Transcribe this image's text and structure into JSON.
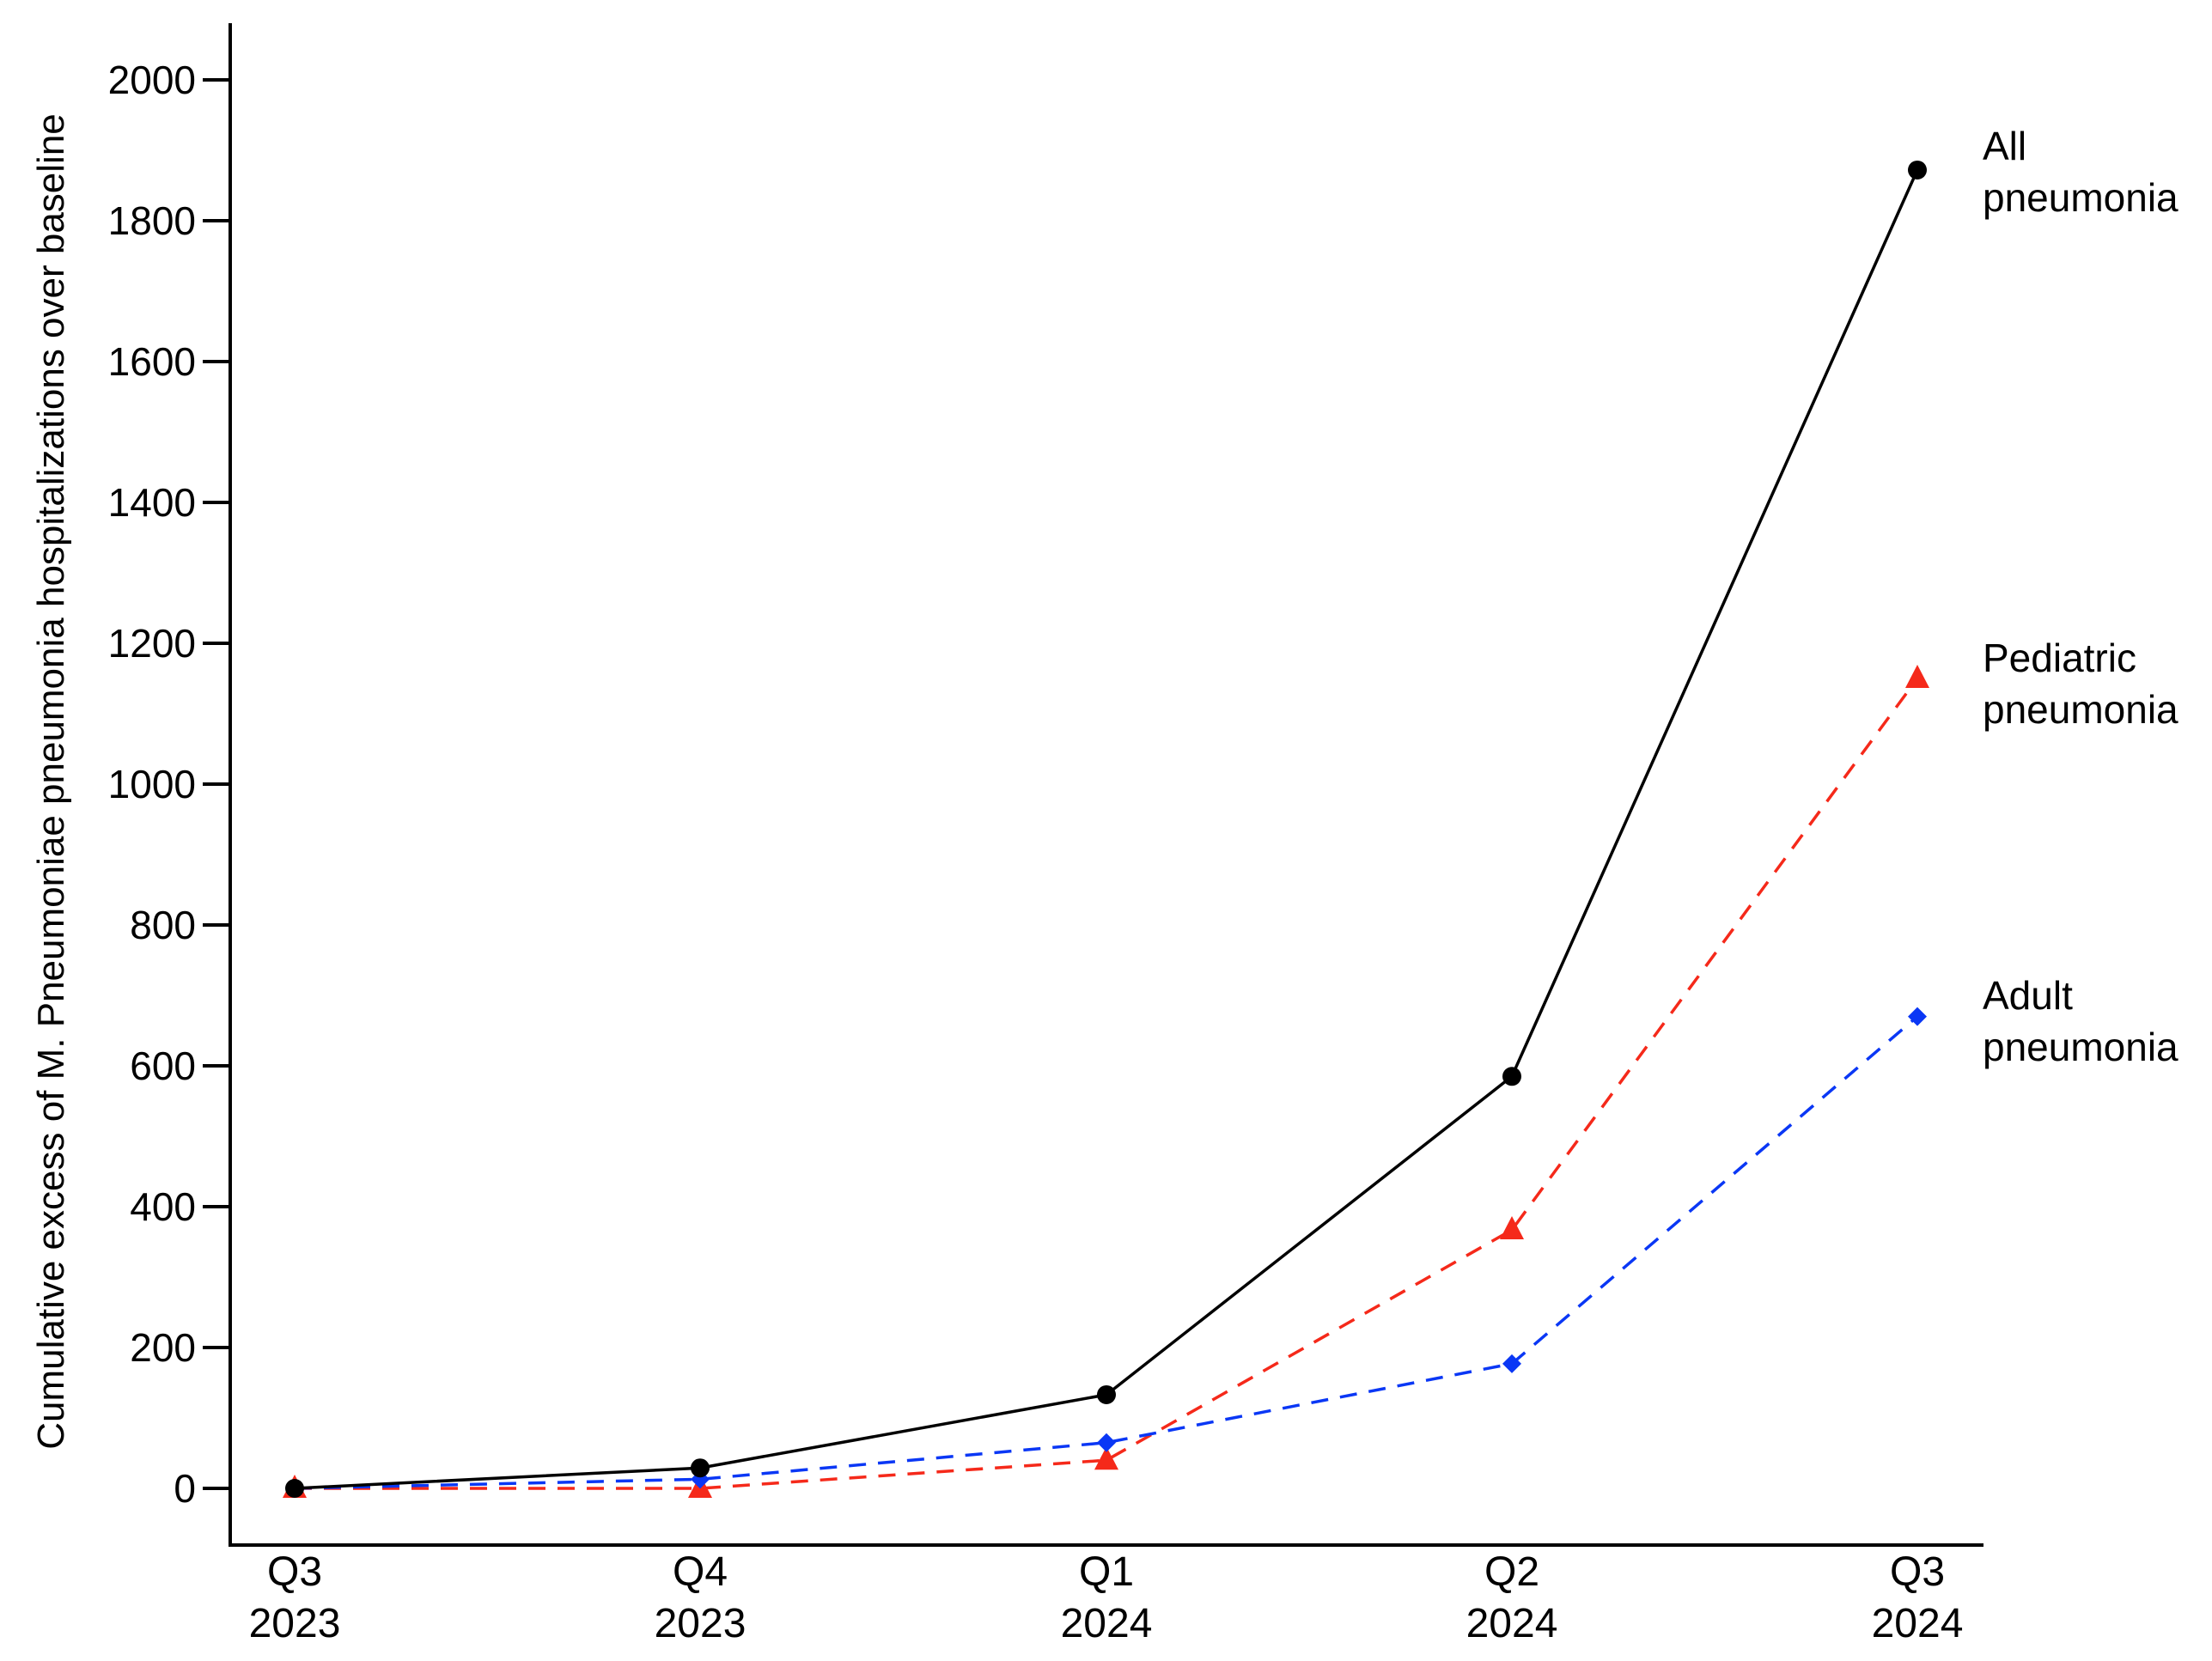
{
  "chart_data": {
    "type": "line",
    "title": "",
    "xlabel": "",
    "ylabel": "Cumulative excess of M. Pneumoniae pneumonia hospitalizations over baseline",
    "categories": [
      {
        "quarter": "Q3",
        "year": "2023"
      },
      {
        "quarter": "Q4",
        "year": "2023"
      },
      {
        "quarter": "Q1",
        "year": "2024"
      },
      {
        "quarter": "Q2",
        "year": "2024"
      },
      {
        "quarter": "Q3",
        "year": "2024"
      }
    ],
    "yticks": [
      0,
      200,
      400,
      600,
      800,
      1000,
      1200,
      1400,
      1600,
      1800,
      2000
    ],
    "ylim": [
      -80,
      2130
    ],
    "grid": false,
    "legend_position": "inline-right",
    "series": [
      {
        "name": "All pneumonia",
        "label_lines": [
          "All",
          "pneumonia"
        ],
        "color": "#000000",
        "marker": "circle",
        "dash": "solid",
        "values": [
          0,
          29,
          133,
          585,
          1872
        ]
      },
      {
        "name": "Pediatric pneumonia",
        "label_lines": [
          "Pediatric",
          "pneumonia"
        ],
        "color": "#f5291a",
        "marker": "triangle",
        "dash": "dashed",
        "values": [
          0,
          0,
          40,
          367,
          1150
        ]
      },
      {
        "name": "Adult pneumonia",
        "label_lines": [
          "Adult",
          "pneumonia"
        ],
        "color": "#0a37f5",
        "marker": "diamond",
        "dash": "dashed",
        "values": [
          0,
          13,
          65,
          177,
          670
        ]
      }
    ]
  }
}
